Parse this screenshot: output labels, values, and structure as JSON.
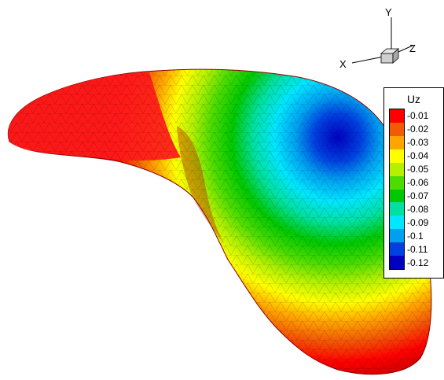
{
  "axes_triad": {
    "x_label": "X",
    "y_label": "Y",
    "z_label": "Z"
  },
  "legend": {
    "title": "Uz",
    "levels": [
      "-0.01",
      "-0.02",
      "-0.03",
      "-0.04",
      "-0.05",
      "-0.06",
      "-0.07",
      "-0.08",
      "-0.09",
      "-0.1",
      "-0.11",
      "-0.12"
    ],
    "colors": [
      "#ff0000",
      "#f25a06",
      "#ffa500",
      "#ffff00",
      "#b4f000",
      "#4ddc00",
      "#00c800",
      "#00e0a0",
      "#00e6ff",
      "#00a0f0",
      "#0040e0",
      "#0000c0"
    ]
  }
}
